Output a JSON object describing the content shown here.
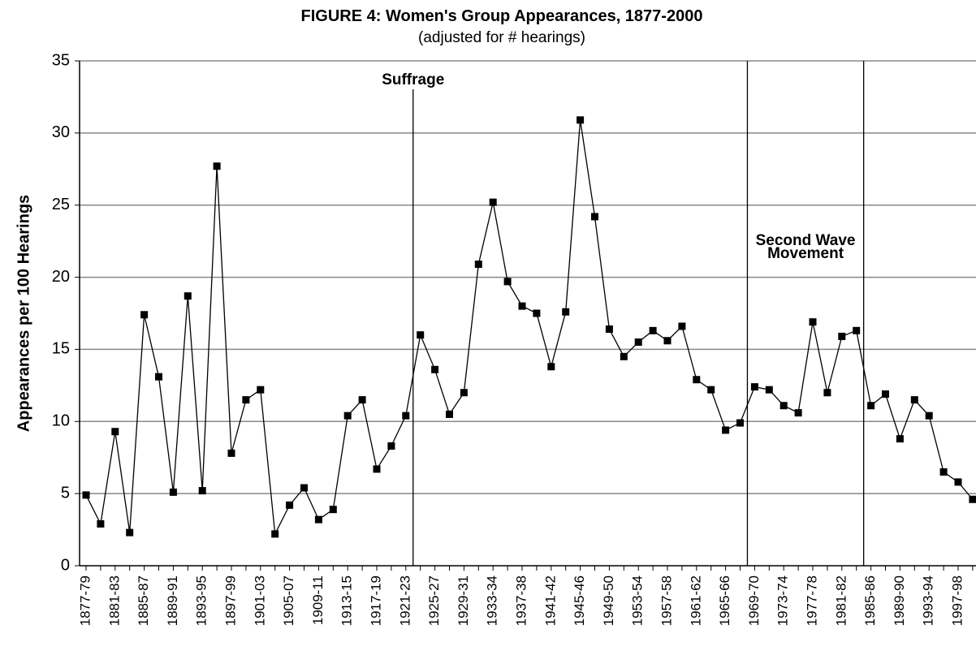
{
  "chart_data": {
    "type": "line",
    "title": "FIGURE 4: Women's Group Appearances, 1877-2000",
    "subtitle": "(adjusted for # hearings)",
    "y_label": "Appearances per 100 Hearings",
    "categories": [
      "1877-79",
      null,
      "1881-83",
      null,
      "1885-87",
      null,
      "1889-91",
      null,
      "1893-95",
      null,
      "1897-99",
      null,
      "1901-03",
      null,
      "1905-07",
      null,
      "1909-11",
      null,
      "1913-15",
      null,
      "1917-19",
      null,
      "1921-23",
      null,
      "1925-27",
      null,
      "1929-31",
      null,
      "1933-34",
      null,
      "1937-38",
      null,
      "1941-42",
      null,
      "1945-46",
      null,
      "1949-50",
      null,
      "1953-54",
      null,
      "1957-58",
      null,
      "1961-62",
      null,
      "1965-66",
      null,
      "1969-70",
      null,
      "1973-74",
      null,
      "1977-78",
      null,
      "1981-82",
      null,
      "1985-86",
      null,
      "1989-90",
      null,
      "1993-94",
      null,
      "1997-98",
      null
    ],
    "values": [
      4.9,
      2.9,
      9.3,
      2.3,
      17.4,
      13.1,
      5.1,
      18.7,
      5.2,
      27.7,
      7.8,
      11.5,
      12.2,
      2.2,
      4.2,
      5.4,
      3.2,
      3.9,
      10.4,
      11.5,
      6.7,
      8.3,
      10.4,
      16.0,
      13.6,
      10.5,
      12.0,
      20.9,
      25.2,
      19.7,
      18.0,
      17.5,
      13.8,
      17.6,
      30.9,
      24.2,
      16.4,
      14.5,
      15.5,
      16.3,
      15.6,
      16.6,
      12.9,
      12.2,
      9.4,
      9.9,
      12.4,
      12.2,
      11.1,
      10.6,
      16.9,
      12.0,
      15.9,
      16.3,
      11.1,
      11.9,
      8.8,
      11.5,
      10.4,
      6.5,
      5.8,
      4.6
    ],
    "color": "#000000",
    "ylim": [
      0,
      35
    ],
    "yticks": [
      0,
      5,
      10,
      15,
      20,
      25,
      30,
      35
    ],
    "grid": true,
    "annotations": [
      {
        "text": [
          "Suffrage"
        ]
      },
      {
        "text": [
          "Second Wave",
          "Movement"
        ]
      }
    ]
  }
}
